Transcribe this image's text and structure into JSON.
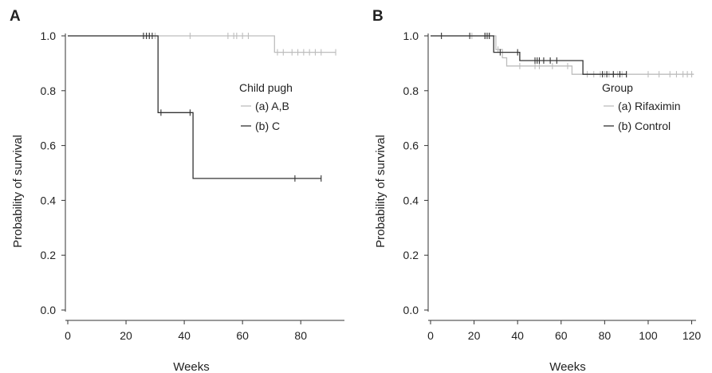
{
  "chart_data": [
    {
      "type": "line",
      "panel_label": "A",
      "xlabel": "Weeks",
      "ylabel": "Probability of survival",
      "xlim": [
        0,
        95
      ],
      "ylim": [
        0,
        1
      ],
      "x_ticks": [
        0,
        20,
        40,
        60,
        80
      ],
      "y_ticks": [
        0.0,
        0.2,
        0.4,
        0.6,
        0.8,
        1.0
      ],
      "x_tick_labels": [
        "0",
        "20",
        "40",
        "60",
        "80"
      ],
      "y_tick_labels": [
        "0.0",
        "0.2",
        "0.4",
        "0.6",
        "0.8",
        "1.0"
      ],
      "grid": false,
      "legend": {
        "title": "Child pugh",
        "placement": "center-right"
      },
      "series": [
        {
          "name": "(a) A,B",
          "color": "#bdbdbd",
          "steps": [
            [
              0,
              1.0
            ],
            [
              71,
              0.94
            ],
            [
              92,
              0.94
            ]
          ],
          "censored": [
            [
              26,
              1.0
            ],
            [
              27,
              1.0
            ],
            [
              28,
              1.0
            ],
            [
              30,
              1.0
            ],
            [
              42,
              1.0
            ],
            [
              55,
              1.0
            ],
            [
              57,
              1.0
            ],
            [
              58,
              1.0
            ],
            [
              60,
              1.0
            ],
            [
              62,
              1.0
            ],
            [
              72,
              0.94
            ],
            [
              74,
              0.94
            ],
            [
              77,
              0.94
            ],
            [
              79,
              0.94
            ],
            [
              81,
              0.94
            ],
            [
              83,
              0.94
            ],
            [
              85,
              0.94
            ],
            [
              87,
              0.94
            ],
            [
              92,
              0.94
            ]
          ]
        },
        {
          "name": "(b) C",
          "color": "#333333",
          "steps": [
            [
              0,
              1.0
            ],
            [
              31,
              0.72
            ],
            [
              43,
              0.48
            ],
            [
              87,
              0.48
            ]
          ],
          "censored": [
            [
              26,
              1.0
            ],
            [
              27,
              1.0
            ],
            [
              28,
              1.0
            ],
            [
              29,
              1.0
            ],
            [
              32,
              0.72
            ],
            [
              42,
              0.72
            ],
            [
              78,
              0.48
            ],
            [
              87,
              0.48
            ]
          ]
        }
      ]
    },
    {
      "type": "line",
      "panel_label": "B",
      "xlabel": "Weeks",
      "ylabel": "Probability of survival",
      "xlim": [
        0,
        122
      ],
      "ylim": [
        0,
        1
      ],
      "x_ticks": [
        0,
        20,
        40,
        60,
        80,
        100,
        120
      ],
      "y_ticks": [
        0.0,
        0.2,
        0.4,
        0.6,
        0.8,
        1.0
      ],
      "x_tick_labels": [
        "0",
        "20",
        "40",
        "60",
        "80",
        "100",
        "120"
      ],
      "y_tick_labels": [
        "0.0",
        "0.2",
        "0.4",
        "0.6",
        "0.8",
        "1.0"
      ],
      "grid": false,
      "legend": {
        "title": "Group",
        "placement": "top-right"
      },
      "series": [
        {
          "name": "(a) Rifaximin",
          "color": "#bdbdbd",
          "steps": [
            [
              0,
              1.0
            ],
            [
              30,
              0.95
            ],
            [
              33,
              0.92
            ],
            [
              35,
              0.89
            ],
            [
              62,
              0.89
            ],
            [
              65,
              0.86
            ],
            [
              121,
              0.86
            ]
          ],
          "censored": [
            [
              19,
              1.0
            ],
            [
              25,
              1.0
            ],
            [
              26,
              1.0
            ],
            [
              27,
              1.0
            ],
            [
              31,
              0.95
            ],
            [
              41,
              0.89
            ],
            [
              48,
              0.89
            ],
            [
              50,
              0.89
            ],
            [
              56,
              0.89
            ],
            [
              63,
              0.89
            ],
            [
              72,
              0.86
            ],
            [
              75,
              0.86
            ],
            [
              78,
              0.86
            ],
            [
              80,
              0.86
            ],
            [
              82,
              0.86
            ],
            [
              84,
              0.86
            ],
            [
              86,
              0.86
            ],
            [
              88,
              0.86
            ],
            [
              90,
              0.86
            ],
            [
              100,
              0.86
            ],
            [
              105,
              0.86
            ],
            [
              110,
              0.86
            ],
            [
              113,
              0.86
            ],
            [
              116,
              0.86
            ],
            [
              118,
              0.86
            ],
            [
              120,
              0.86
            ]
          ]
        },
        {
          "name": "(b) Control",
          "color": "#333333",
          "steps": [
            [
              0,
              1.0
            ],
            [
              29,
              0.94
            ],
            [
              41,
              0.91
            ],
            [
              70,
              0.86
            ],
            [
              90,
              0.86
            ]
          ],
          "censored": [
            [
              5,
              1.0
            ],
            [
              18,
              1.0
            ],
            [
              25,
              1.0
            ],
            [
              26,
              1.0
            ],
            [
              27,
              1.0
            ],
            [
              32,
              0.94
            ],
            [
              40,
              0.94
            ],
            [
              48,
              0.91
            ],
            [
              49,
              0.91
            ],
            [
              50,
              0.91
            ],
            [
              52,
              0.91
            ],
            [
              55,
              0.91
            ],
            [
              58,
              0.91
            ],
            [
              79,
              0.86
            ],
            [
              81,
              0.86
            ],
            [
              84,
              0.86
            ],
            [
              87,
              0.86
            ],
            [
              90,
              0.86
            ]
          ]
        }
      ]
    }
  ]
}
